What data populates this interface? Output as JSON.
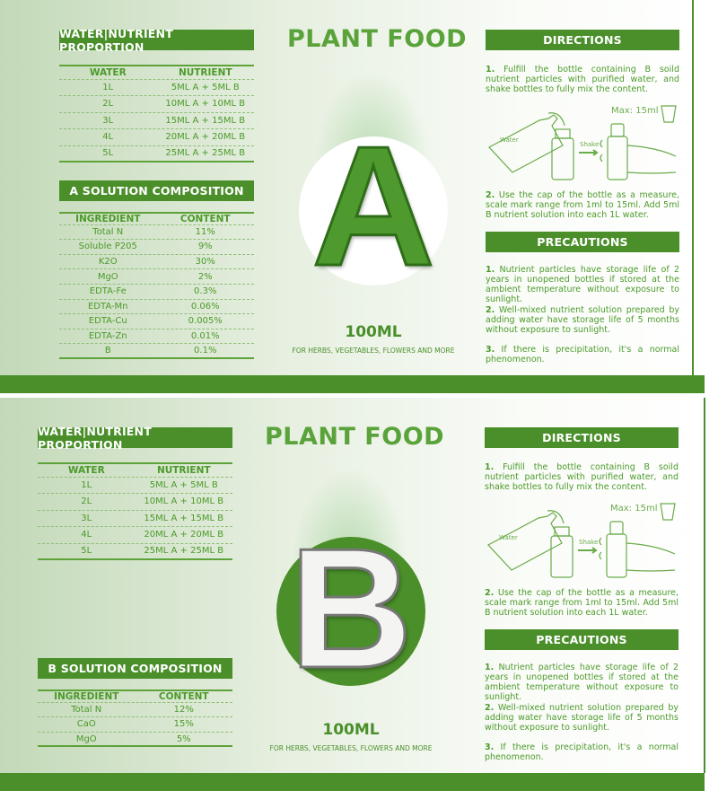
{
  "colors": {
    "brand_green": "#4a8f2a",
    "text_green": "#4c9a2a",
    "circle_a": "#ffffff",
    "circle_b": "#4a8f2a"
  },
  "labels": [
    {
      "title": "PLANT FOOD",
      "letter": "A",
      "volume": "100ML",
      "tagline": "FOR HERBS, VEGETABLES, FLOWERS AND MORE",
      "proportion": {
        "heading": "WATER|NUTRIENT PROPORTION",
        "columns": [
          "WATER",
          "NUTRIENT"
        ],
        "rows": [
          [
            "1L",
            "5ML A + 5ML B"
          ],
          [
            "2L",
            "10ML A + 10ML B"
          ],
          [
            "3L",
            "15ML A + 15ML B"
          ],
          [
            "4L",
            "20ML A + 20ML B"
          ],
          [
            "5L",
            "25ML A + 25ML B"
          ]
        ]
      },
      "composition": {
        "heading": "A SOLUTION COMPOSITION",
        "columns": [
          "INGREDIENT",
          "CONTENT"
        ],
        "rows": [
          [
            "Total N",
            "11%"
          ],
          [
            "Soluble P205",
            "9%"
          ],
          [
            "K2O",
            "30%"
          ],
          [
            "MgO",
            "2%"
          ],
          [
            "EDTA-Fe",
            "0.3%"
          ],
          [
            "EDTA-Mn",
            "0.06%"
          ],
          [
            "EDTA-Cu",
            "0.005%"
          ],
          [
            "EDTA-Zn",
            "0.01%"
          ],
          [
            "B",
            "0.1%"
          ]
        ]
      },
      "directions": {
        "heading": "DIRECTIONS",
        "step1_num": "1.",
        "step1": "Fulfill the bottle containing B soild nutrient particles with purified water, and shake bottles to fully mix the content.",
        "water_label": "Water",
        "shake_label": "Shake",
        "max_label": "Max: 15ml",
        "step2_num": "2.",
        "step2": "Use the cap of the bottle as a measure, scale mark range from 1ml to 15ml. Add 5ml B nutrient solution into each 1L water."
      },
      "precautions": {
        "heading": "PRECAUTIONS",
        "items": [
          {
            "num": "1.",
            "text": "Nutrient particles have storage life of 2 years in unopened bottles if stored at the ambient temperature without exposure to sunlight."
          },
          {
            "num": "2.",
            "text": "Well-mixed nutrient solution prepared by adding water have storage life of 5 months without exposure to sunlight."
          },
          {
            "num": "3.",
            "text": "If there is precipitation, it's a normal phenomenon."
          }
        ]
      }
    },
    {
      "title": "PLANT FOOD",
      "letter": "B",
      "volume": "100ML",
      "tagline": "FOR HERBS, VEGETABLES, FLOWERS AND MORE",
      "proportion": {
        "heading": "WATER|NUTRIENT PROPORTION",
        "columns": [
          "WATER",
          "NUTRIENT"
        ],
        "rows": [
          [
            "1L",
            "5ML A + 5ML B"
          ],
          [
            "2L",
            "10ML A + 10ML B"
          ],
          [
            "3L",
            "15ML A + 15ML B"
          ],
          [
            "4L",
            "20ML A + 20ML B"
          ],
          [
            "5L",
            "25ML A + 25ML B"
          ]
        ]
      },
      "composition": {
        "heading": "B SOLUTION COMPOSITION",
        "columns": [
          "INGREDIENT",
          "CONTENT"
        ],
        "rows": [
          [
            "Total N",
            "12%"
          ],
          [
            "CaO",
            "15%"
          ],
          [
            "MgO",
            "5%"
          ]
        ]
      },
      "directions": {
        "heading": "DIRECTIONS",
        "step1_num": "1.",
        "step1": "Fulfill the bottle containing B soild nutrient particles with purified water, and shake bottles to fully mix the content.",
        "water_label": "Water",
        "shake_label": "Shake",
        "max_label": "Max: 15ml",
        "step2_num": "2.",
        "step2": "Use the cap of the bottle as a measure, scale mark range from 1ml to 15ml. Add 5ml B nutrient solution into each 1L water."
      },
      "precautions": {
        "heading": "PRECAUTIONS",
        "items": [
          {
            "num": "1.",
            "text": "Nutrient particles have storage life of 2 years in unopened bottles if stored at the ambient temperature without exposure to sunlight."
          },
          {
            "num": "2.",
            "text": "Well-mixed nutrient solution prepared by adding water have storage life of 5 months without exposure to sunlight."
          },
          {
            "num": "3.",
            "text": "If there is precipitation, it's a normal phenomenon."
          }
        ]
      }
    }
  ]
}
